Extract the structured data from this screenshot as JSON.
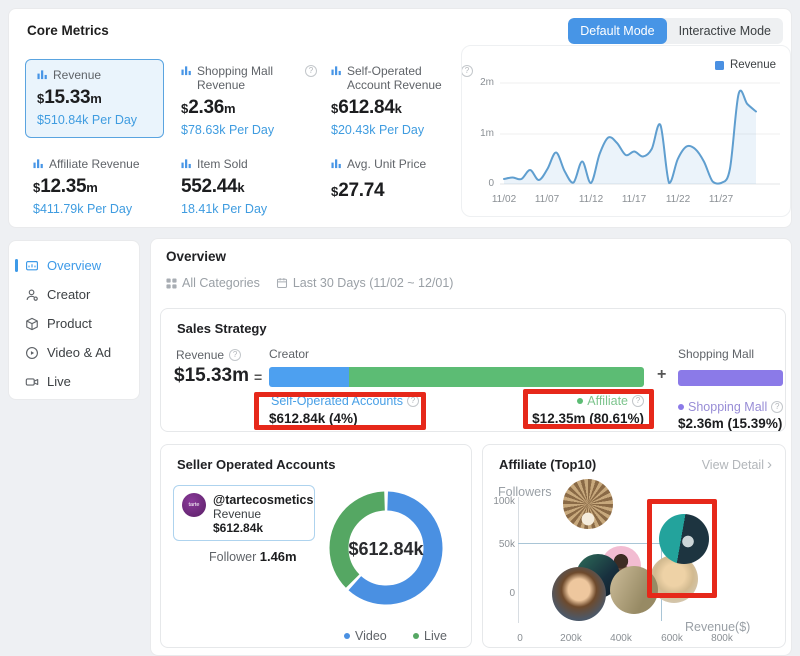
{
  "mode_switch": {
    "default_label": "Default Mode",
    "interactive_label": "Interactive Mode"
  },
  "core_metrics": {
    "title": "Core Metrics",
    "cards": [
      {
        "label": "Revenue",
        "currency": "$",
        "num": "15.33",
        "unit": "m",
        "per_day": "$510.84k Per Day"
      },
      {
        "label": "Shopping Mall Revenue",
        "currency": "$",
        "num": "2.36",
        "unit": "m",
        "per_day": "$78.63k Per Day"
      },
      {
        "label": "Self-Operated Account Revenue",
        "currency": "$",
        "num": "612.84",
        "unit": "k",
        "per_day": "$20.43k Per Day"
      },
      {
        "label": "Affiliate Revenue",
        "currency": "$",
        "num": "12.35",
        "unit": "m",
        "per_day": "$411.79k Per Day"
      },
      {
        "label": "Item Sold",
        "currency": "",
        "num": "552.44",
        "unit": "k",
        "per_day": "18.41k Per Day"
      },
      {
        "label": "Avg. Unit Price",
        "currency": "$",
        "num": "27.74",
        "unit": "",
        "per_day": ""
      }
    ]
  },
  "revenue_chart": {
    "legend_label": "Revenue",
    "yticks": [
      "2m",
      "1m",
      "0"
    ],
    "xticks": [
      "11/02",
      "11/07",
      "11/12",
      "11/17",
      "11/22",
      "11/27"
    ]
  },
  "sidebar": {
    "items": [
      {
        "label": "Overview"
      },
      {
        "label": "Creator"
      },
      {
        "label": "Product"
      },
      {
        "label": "Video & Ad"
      },
      {
        "label": "Live"
      }
    ]
  },
  "overview": {
    "title": "Overview",
    "filters": {
      "categories": "All Categories",
      "date_range": "Last 30 Days (11/02 ~ 12/01)"
    }
  },
  "sales_strategy": {
    "title": "Sales Strategy",
    "revenue_label": "Revenue",
    "revenue_value": "$15.33m",
    "equals_sign": "=",
    "plus_sign": "+",
    "creator_label": "Creator",
    "shopping_mall_bar_label": "Shopping Mall",
    "self_operated_label": "Self-Operated Accounts",
    "self_operated_value": "$612.84k (4%)",
    "affiliate_label": "Affiliate",
    "affiliate_value": "$12.35m (80.61%)",
    "shopping_mall_label": "Shopping Mall",
    "shopping_mall_value": "$2.36m (15.39%)"
  },
  "seller_accounts": {
    "title": "Seller Operated Accounts",
    "account": {
      "avatar_text": "tarte",
      "handle": "@tartecosmetics",
      "revenue_label": "Revenue",
      "revenue_value": "$612.84k",
      "follower_label": "Follower",
      "follower_value": "1.46m"
    },
    "donut_center": "$612.84k",
    "legend": [
      {
        "label": "Video"
      },
      {
        "label": "Live"
      }
    ]
  },
  "affiliate_top10": {
    "title": "Affiliate (Top10)",
    "view_detail_label": "View Detail",
    "chevron": "›",
    "ylabel": "Followers",
    "xlabel": "Revenue($)",
    "yticks": [
      "100k",
      "50k",
      "0"
    ],
    "xticks": [
      "0",
      "200k",
      "400k",
      "600k",
      "800k"
    ]
  },
  "colors": {
    "accent_blue": "#4795e6",
    "link_blue": "#3f9ce0",
    "bar_blue": "#4da0f0",
    "bar_green": "#5cbc74",
    "bar_purple": "#8b7ae8",
    "donut_blue": "#4a90e2",
    "donut_green": "#55a763",
    "annotation_red": "#e6281a",
    "trend_line": "#5f9ecf"
  },
  "chart_data": [
    {
      "type": "line",
      "title": "Revenue trend (Core Metrics)",
      "x": [
        "11/02",
        "11/03",
        "11/04",
        "11/05",
        "11/06",
        "11/07",
        "11/08",
        "11/09",
        "11/10",
        "11/11",
        "11/12",
        "11/13",
        "11/14",
        "11/15",
        "11/16",
        "11/17",
        "11/18",
        "11/19",
        "11/20",
        "11/21",
        "11/22",
        "11/23",
        "11/24",
        "11/25",
        "11/26",
        "11/27",
        "11/28",
        "11/29",
        "11/30",
        "12/01"
      ],
      "series": [
        {
          "name": "Revenue",
          "values": [
            100000,
            130000,
            100000,
            280000,
            80000,
            300000,
            630000,
            250000,
            30000,
            450000,
            20000,
            600000,
            930000,
            820000,
            580000,
            650000,
            550000,
            700000,
            1180000,
            20000,
            500000,
            750000,
            700000,
            450000,
            50000,
            20000,
            300000,
            1800000,
            1600000,
            1450000
          ]
        }
      ],
      "ylim": [
        0,
        2000000
      ],
      "ytick_labels": [
        "0",
        "1m",
        "2m"
      ],
      "legend_position": "top-right",
      "grid": true
    },
    {
      "type": "pie",
      "title": "Seller Operated Accounts split",
      "labels": [
        "Video",
        "Live"
      ],
      "values_pct": [
        62,
        38
      ],
      "center_label": "$612.84k",
      "legend_position": "bottom"
    },
    {
      "type": "scatter",
      "title": "Affiliate (Top10)",
      "xlabel": "Revenue($)",
      "ylabel": "Followers",
      "xlim": [
        0,
        800000
      ],
      "ylim": [
        0,
        100000
      ],
      "points": [
        {
          "name": "creator-ornate",
          "revenue": 270000,
          "followers": 96000,
          "r": 25,
          "style": "ornate",
          "z": 7
        },
        {
          "name": "creator-teal",
          "revenue": 650000,
          "followers": 59000,
          "r": 25,
          "style": "teal",
          "z": 6,
          "highlighted": true
        },
        {
          "name": "creator-blonde",
          "revenue": 610000,
          "followers": 18000,
          "r": 24,
          "style": "blonde",
          "z": 1
        },
        {
          "name": "creator-pink",
          "revenue": 400000,
          "followers": 31000,
          "r": 20,
          "style": "pink",
          "z": 2
        },
        {
          "name": "creator-dark",
          "revenue": 310000,
          "followers": 21000,
          "r": 22,
          "style": "dark",
          "z": 3
        },
        {
          "name": "creator-man",
          "revenue": 235000,
          "followers": 2000,
          "r": 27,
          "style": "man",
          "z": 5
        },
        {
          "name": "creator-beige",
          "revenue": 450000,
          "followers": 6000,
          "r": 24,
          "style": "beige",
          "z": 4
        }
      ],
      "crosshair": {
        "revenue": 558000,
        "followers": 55000
      }
    }
  ]
}
